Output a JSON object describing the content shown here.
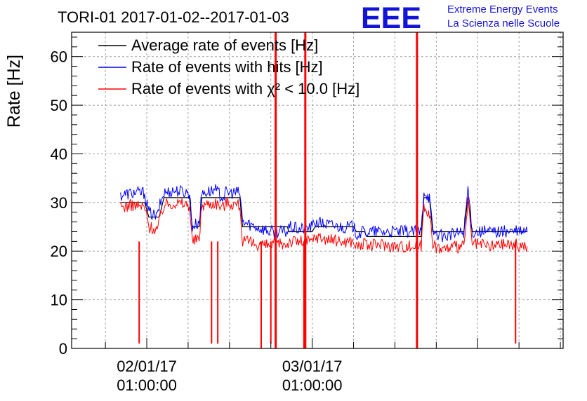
{
  "chart_data": {
    "type": "line",
    "title": "TORI-01 2017-01-02--2017-01-03",
    "ylabel": "Rate [Hz]",
    "xlabel": "",
    "ylim": [
      0,
      65
    ],
    "grid": true,
    "legend_position": "top-left",
    "y_ticks": [
      "0",
      "10",
      "20",
      "30",
      "40",
      "50",
      "60"
    ],
    "x_ticks": [
      {
        "line1": "02/01/17",
        "line2": "01:00:00"
      },
      {
        "line1": "03/01/17",
        "line2": "01:00:00"
      }
    ],
    "x_unit": "hours since 02/01/17 00:00",
    "xlim": [
      -10.9,
      60.4
    ],
    "series": [
      {
        "name": "Average rate of events [Hz]",
        "color": "#000000",
        "points": [
          [
            -3.8,
            30
          ],
          [
            -0.3,
            30
          ],
          [
            0.3,
            27
          ],
          [
            1.8,
            27
          ],
          [
            2.5,
            31
          ],
          [
            6.2,
            31
          ],
          [
            6.6,
            25
          ],
          [
            7.6,
            25
          ],
          [
            8.0,
            31
          ],
          [
            13.5,
            31
          ],
          [
            13.9,
            25
          ],
          [
            18.5,
            25
          ],
          [
            20.4,
            25
          ],
          [
            20.6,
            24
          ],
          [
            24.0,
            24
          ],
          [
            24.4,
            25
          ],
          [
            30.0,
            25
          ],
          [
            30.4,
            24
          ],
          [
            31.6,
            24
          ],
          [
            31.9,
            23
          ],
          [
            39.8,
            23
          ],
          [
            40.2,
            31
          ],
          [
            41.0,
            31
          ],
          [
            41.5,
            24
          ],
          [
            46.0,
            24
          ],
          [
            46.6,
            31
          ],
          [
            47.2,
            24
          ],
          [
            55.2,
            24
          ]
        ]
      },
      {
        "name": "Rate of events with hits [Hz]",
        "color": "#0000ff",
        "points": [
          [
            -3.8,
            31.5
          ],
          [
            -2.0,
            32
          ],
          [
            -0.3,
            32
          ],
          [
            0.3,
            28
          ],
          [
            1.5,
            27
          ],
          [
            1.8,
            29
          ],
          [
            2.5,
            32
          ],
          [
            4.0,
            32.5
          ],
          [
            6.2,
            32
          ],
          [
            6.6,
            25
          ],
          [
            7.6,
            26
          ],
          [
            8.0,
            32
          ],
          [
            10.0,
            32.5
          ],
          [
            11.0,
            31
          ],
          [
            11.5,
            32
          ],
          [
            13.5,
            32
          ],
          [
            13.9,
            26
          ],
          [
            18.0,
            24
          ],
          [
            18.5,
            24
          ],
          [
            20.4,
            24
          ],
          [
            20.6,
            25
          ],
          [
            22.0,
            24.5
          ],
          [
            24.0,
            25
          ],
          [
            24.4,
            26
          ],
          [
            28.0,
            25
          ],
          [
            30.0,
            25
          ],
          [
            30.4,
            23.5
          ],
          [
            31.6,
            24
          ],
          [
            31.9,
            24
          ],
          [
            34.0,
            24
          ],
          [
            36.0,
            24
          ],
          [
            39.8,
            24
          ],
          [
            40.2,
            32.5
          ],
          [
            41.0,
            31
          ],
          [
            41.5,
            24
          ],
          [
            43.0,
            23
          ],
          [
            46.0,
            24
          ],
          [
            46.6,
            33
          ],
          [
            47.2,
            24
          ],
          [
            50.0,
            24
          ],
          [
            52.0,
            24
          ],
          [
            55.2,
            24
          ]
        ]
      },
      {
        "name": "Rate of events with χ² < 10.0 [Hz]",
        "color": "#ff0000",
        "points": [
          [
            -3.8,
            29
          ],
          [
            -2.0,
            29.5
          ],
          [
            -0.3,
            29
          ],
          [
            0.3,
            25
          ],
          [
            1.5,
            24.5
          ],
          [
            1.8,
            26
          ],
          [
            2.5,
            29.5
          ],
          [
            4.0,
            30
          ],
          [
            6.2,
            29.5
          ],
          [
            6.6,
            22
          ],
          [
            7.6,
            22.5
          ],
          [
            8.0,
            29.5
          ],
          [
            10.0,
            30
          ],
          [
            11.0,
            29
          ],
          [
            11.5,
            30
          ],
          [
            13.5,
            29.5
          ],
          [
            13.9,
            22
          ],
          [
            18.0,
            21
          ],
          [
            18.5,
            21.5
          ],
          [
            20.4,
            21.5
          ],
          [
            20.6,
            22
          ],
          [
            22.0,
            22
          ],
          [
            24.0,
            22
          ],
          [
            24.4,
            23
          ],
          [
            28.0,
            22
          ],
          [
            30.0,
            22
          ],
          [
            30.4,
            21
          ],
          [
            31.6,
            21.5
          ],
          [
            31.9,
            21
          ],
          [
            34.0,
            21.5
          ],
          [
            36.0,
            21
          ],
          [
            39.8,
            21
          ],
          [
            40.2,
            29.5
          ],
          [
            41.0,
            28
          ],
          [
            41.5,
            21
          ],
          [
            43.0,
            20.5
          ],
          [
            46.0,
            21
          ],
          [
            46.6,
            30
          ],
          [
            47.2,
            21.5
          ],
          [
            50.0,
            21
          ],
          [
            52.0,
            21.5
          ],
          [
            55.2,
            21
          ]
        ]
      }
    ],
    "dips": [
      {
        "x": -1.1,
        "y": 1
      },
      {
        "x": 9.4,
        "y": 1
      },
      {
        "x": 10.3,
        "y": 1
      },
      {
        "x": 16.6,
        "y": 0
      },
      {
        "x": 18.0,
        "y": 1
      },
      {
        "x": 22.8,
        "y": 0
      },
      {
        "x": 53.5,
        "y": 1
      }
    ],
    "spikes": [
      {
        "x": 18.7,
        "y": 65
      },
      {
        "x": 23.0,
        "y": 65
      },
      {
        "x": 39.2,
        "y": 65
      }
    ]
  },
  "logo": {
    "mark": "EEE",
    "line1": "Extreme Energy Events",
    "line2": "La Scienza nelle Scuole"
  }
}
